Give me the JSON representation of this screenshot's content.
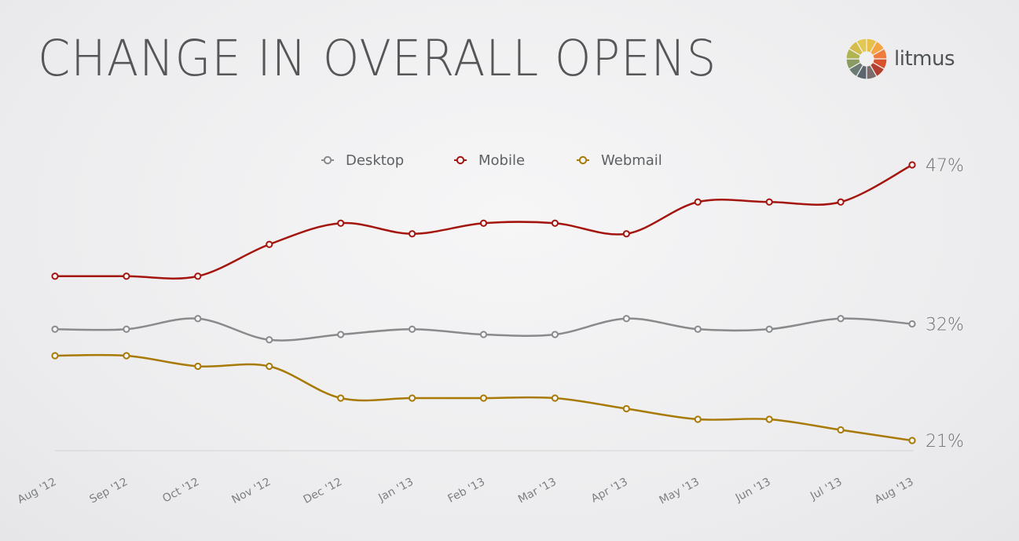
{
  "title": "CHANGE IN OVERALL OPENS",
  "logo": {
    "text": "litmus",
    "icon": "litmus-wheel-icon"
  },
  "chart_data": {
    "type": "line",
    "categories": [
      "Aug '12",
      "Sep '12",
      "Oct '12",
      "Nov '12",
      "Dec '12",
      "Jan '13",
      "Feb '13",
      "Mar '13",
      "Apr '13",
      "May '13",
      "Jun '13",
      "Jul '13",
      "Aug '13"
    ],
    "ylim": [
      19,
      48
    ],
    "grid": false,
    "legend_position": "top-center",
    "series": [
      {
        "name": "Desktop",
        "color": "#888a8c",
        "values": [
          31.5,
          31.5,
          32.5,
          30.5,
          31,
          31.5,
          31,
          31,
          32.5,
          31.5,
          31.5,
          32.5,
          32
        ],
        "end_label": "32%"
      },
      {
        "name": "Mobile",
        "color": "#a3150e",
        "values": [
          36.5,
          36.5,
          36.5,
          39.5,
          41.5,
          40.5,
          41.5,
          41.5,
          40.5,
          43.5,
          43.5,
          43.5,
          47
        ],
        "end_label": "47%"
      },
      {
        "name": "Webmail",
        "color": "#a87a05",
        "values": [
          29,
          29,
          28,
          28,
          25,
          25,
          25,
          25,
          24,
          23,
          23,
          22,
          21
        ],
        "end_label": "21%"
      }
    ]
  }
}
